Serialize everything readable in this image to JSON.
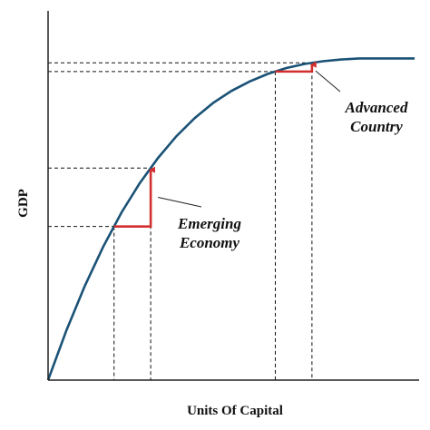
{
  "chart_data": {
    "type": "line",
    "xlabel": "Units Of Capital",
    "ylabel": "GDP",
    "xlim": [
      0,
      10
    ],
    "ylim": [
      0,
      10
    ],
    "grid": false,
    "curve_color": "#1a5276",
    "arrow_color": "#d32f2f",
    "series": [
      {
        "x": [
          0,
          0.5,
          1,
          1.5,
          2,
          2.5,
          3,
          3.5,
          4,
          4.5,
          5,
          5.5,
          6,
          6.5,
          7,
          7.5,
          8,
          8.5,
          9,
          9.5,
          10
        ],
        "y": [
          0,
          1.45,
          2.74,
          3.88,
          4.88,
          5.74,
          6.48,
          7.11,
          7.64,
          8.08,
          8.43,
          8.71,
          8.93,
          9.1,
          9.22,
          9.3,
          9.35,
          9.38,
          9.38,
          9.38,
          9.38
        ]
      }
    ],
    "annotations": [
      {
        "lines": [
          "Emerging",
          "Economy"
        ],
        "x_from": 1.8,
        "y_from": 4.6,
        "x_to": 2.8,
        "y_to": 6.2
      },
      {
        "lines": [
          "Advanced",
          "Country"
        ],
        "x_from": 6.2,
        "y_from": 8.97,
        "x_to": 7.2,
        "y_to": 9.25
      }
    ]
  }
}
